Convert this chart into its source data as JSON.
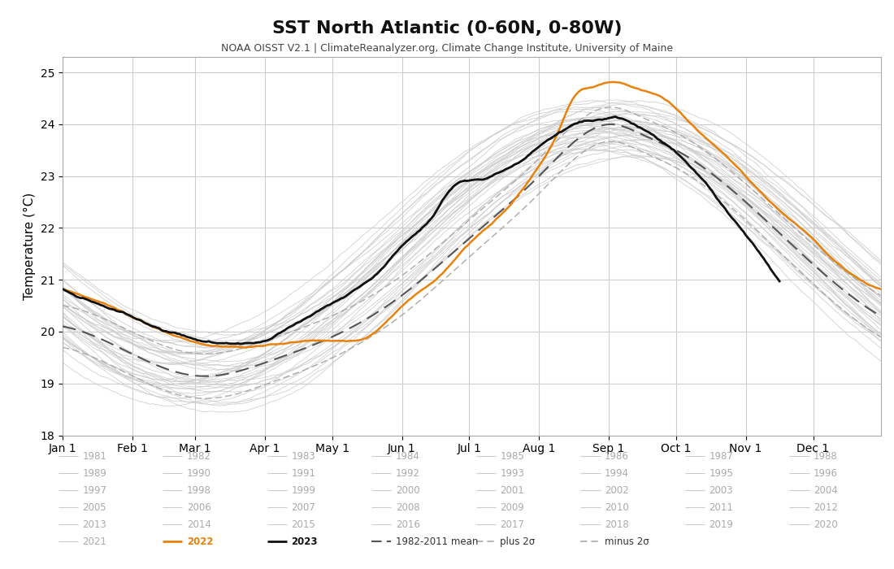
{
  "title": "SST North Atlantic (0-60N, 0-80W)",
  "subtitle": "NOAA OISST V2.1 | ClimateReanalyzer.org, Climate Change Institute, University of Maine",
  "ylabel": "Temperature (°C)",
  "ylim": [
    18,
    25.3
  ],
  "yticks": [
    18,
    19,
    20,
    21,
    22,
    23,
    24,
    25
  ],
  "xtick_labels": [
    "Jan 1",
    "Feb 1",
    "Mar 1",
    "Apr 1",
    "May 1",
    "Jun 1",
    "Jul 1",
    "Aug 1",
    "Sep 1",
    "Oct 1",
    "Nov 1",
    "Dec 1"
  ],
  "month_days": [
    0,
    31,
    59,
    90,
    120,
    151,
    181,
    212,
    243,
    273,
    304,
    334
  ],
  "color_2022": "#E8820C",
  "color_2023": "#111111",
  "color_mean": "#555555",
  "color_sigma": "#AAAAAA",
  "color_historical": "#CCCCCC",
  "historical_years": [
    "1981",
    "1982",
    "1983",
    "1984",
    "1985",
    "1986",
    "1987",
    "1988",
    "1989",
    "1990",
    "1991",
    "1992",
    "1993",
    "1994",
    "1995",
    "1996",
    "1997",
    "1998",
    "1999",
    "2000",
    "2001",
    "2002",
    "2003",
    "2004",
    "2005",
    "2006",
    "2007",
    "2008",
    "2009",
    "2010",
    "2011",
    "2012",
    "2013",
    "2014",
    "2015",
    "2016",
    "2017",
    "2018",
    "2019",
    "2020",
    "2021"
  ],
  "legend_col_data": [
    [
      "1981",
      "1989",
      "1997",
      "2005",
      "2013",
      "2021"
    ],
    [
      "1982",
      "1990",
      "1998",
      "2006",
      "2014",
      "2022"
    ],
    [
      "1983",
      "1991",
      "1999",
      "2007",
      "2015",
      "2023"
    ],
    [
      "1984",
      "1992",
      "2000",
      "2008",
      "2016",
      "1982-2011 mean"
    ],
    [
      "1985",
      "1993",
      "2001",
      "2009",
      "2017",
      "plus 2σ"
    ],
    [
      "1986",
      "1994",
      "2002",
      "2010",
      "2018",
      "minus 2σ"
    ],
    [
      "1987",
      "1995",
      "2003",
      "2011",
      "2019",
      ""
    ],
    [
      "1988",
      "1996",
      "2004",
      "2012",
      "2020",
      ""
    ]
  ]
}
